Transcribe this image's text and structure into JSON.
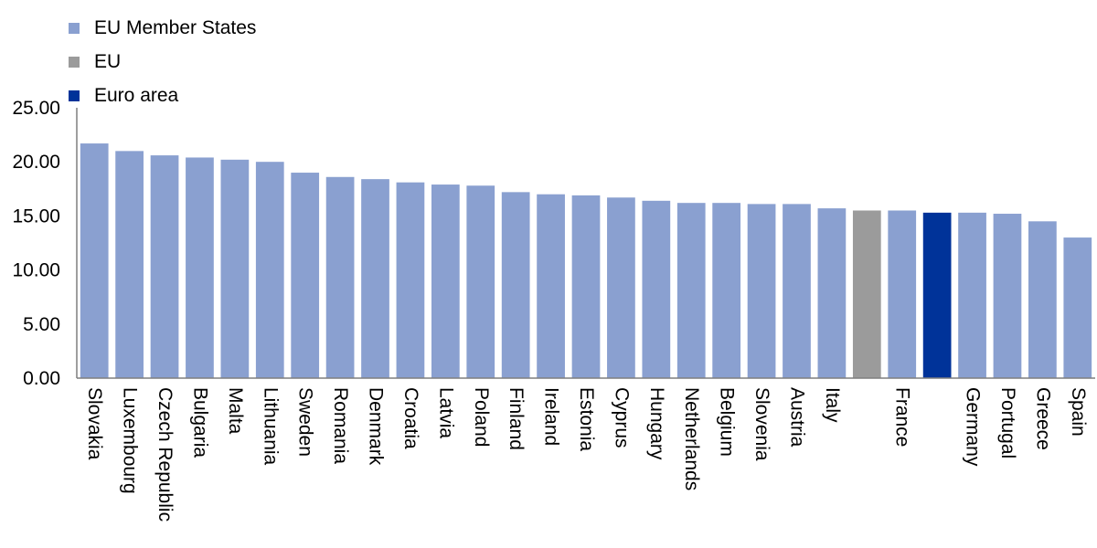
{
  "colors": {
    "member": "#8aa0d0",
    "eu": "#9b9b9b",
    "euro": "#003399",
    "axis": "#7f7f7f"
  },
  "legend": [
    {
      "label": "EU Member States",
      "color": "#8aa0d0"
    },
    {
      "label": "EU",
      "color": "#9b9b9b"
    },
    {
      "label": "Euro area",
      "color": "#003399"
    }
  ],
  "chart_data": {
    "type": "bar",
    "title": "",
    "xlabel": "",
    "ylabel": "",
    "ylim": [
      0,
      25
    ],
    "yticks": [
      "0.00",
      "5.00",
      "10.00",
      "15.00",
      "20.00",
      "25.00"
    ],
    "grid": false,
    "legend_position": "top-left",
    "categories": [
      "Slovakia",
      "Luxembourg",
      "Czech Republic",
      "Bulgaria",
      "Malta",
      "Lithuania",
      "Sweden",
      "Romania",
      "Denmark",
      "Croatia",
      "Latvia",
      "Poland",
      "Finland",
      "Ireland",
      "Estonia",
      "Cyprus",
      "Hungary",
      "Netherlands",
      "Belgium",
      "Slovenia",
      "Austria",
      "Italy",
      "",
      "France",
      "",
      "Germany",
      "Portugal",
      "Greece",
      "Spain"
    ],
    "values": [
      21.7,
      21.0,
      20.6,
      20.4,
      20.2,
      20.0,
      19.0,
      18.6,
      18.4,
      18.1,
      17.9,
      17.8,
      17.2,
      17.0,
      16.9,
      16.7,
      16.4,
      16.2,
      16.2,
      16.1,
      16.1,
      15.7,
      15.5,
      15.5,
      15.3,
      15.3,
      15.2,
      14.5,
      13.0
    ],
    "groups": [
      "member",
      "member",
      "member",
      "member",
      "member",
      "member",
      "member",
      "member",
      "member",
      "member",
      "member",
      "member",
      "member",
      "member",
      "member",
      "member",
      "member",
      "member",
      "member",
      "member",
      "member",
      "member",
      "eu",
      "member",
      "euro",
      "member",
      "member",
      "member",
      "member"
    ]
  }
}
